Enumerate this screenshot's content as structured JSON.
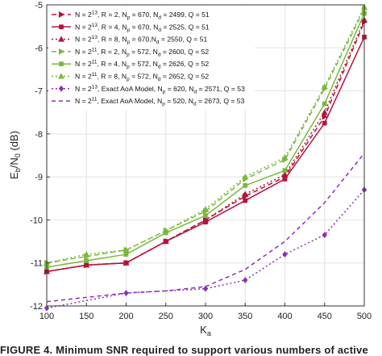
{
  "chart_data": {
    "type": "line",
    "xlabel_main": "K",
    "xlabel_sub": "a",
    "ylabel_parts": {
      "e": "E",
      "e_sub": "b",
      "slash": "/N",
      "n_sub": "0",
      "unit": " (dB)"
    },
    "xlim": [
      100,
      500
    ],
    "ylim": [
      -12,
      -5
    ],
    "x_ticks": [
      100,
      150,
      200,
      250,
      300,
      350,
      400,
      450,
      500
    ],
    "y_ticks": [
      -12,
      -11,
      -10,
      -9,
      -8,
      -7,
      -6,
      -5
    ],
    "grid": true,
    "legend_position": "top-left",
    "series": [
      {
        "legend": {
          "a": "N = 2",
          "sup": "13",
          "b": ", R = 2, N",
          "sub1": "p",
          "c": " = 670, N",
          "sub2": "d",
          "d": " = 2499, Q = 51"
        },
        "color": "#b5123a",
        "dash": "6,4",
        "marker": "triangle-right",
        "x": [
          100,
          150,
          200,
          250,
          300,
          350,
          400,
          450,
          500
        ],
        "y": [
          -11.2,
          -11.05,
          -11.0,
          -10.5,
          -10.0,
          -9.45,
          -9.0,
          -7.6,
          -5.4
        ]
      },
      {
        "legend": {
          "a": "N = 2",
          "sup": "13",
          "b": ", R = 4, N",
          "sub1": "p",
          "c": " = 670, N",
          "sub2": "d",
          "d": " = 2525, Q = 51"
        },
        "color": "#b5123a",
        "dash": "",
        "marker": "square",
        "x": [
          100,
          150,
          200,
          250,
          300,
          350,
          400,
          450,
          500
        ],
        "y": [
          -11.2,
          -11.05,
          -11.0,
          -10.5,
          -10.05,
          -9.55,
          -9.05,
          -7.75,
          -5.75
        ]
      },
      {
        "legend": {
          "a": "N = 2",
          "sup": "13",
          "b": ", R = 8, N",
          "sub1": "p",
          "c": " = 670,N",
          "sub2": "d",
          "d": " = 2550, Q = 51"
        },
        "color": "#b5123a",
        "dash": "2,3",
        "marker": "triangle-up",
        "x": [
          100,
          150,
          200,
          250,
          300,
          350,
          400,
          450,
          500
        ],
        "y": [
          -11.2,
          -11.05,
          -11.0,
          -10.5,
          -10.0,
          -9.4,
          -8.95,
          -7.5,
          -5.35
        ]
      },
      {
        "legend": {
          "a": "N = 2",
          "sup": "11",
          "b": ", R = 2, N",
          "sub1": "p",
          "c": " = 572, N",
          "sub2": "d",
          "d": " = 2600, Q = 52"
        },
        "color": "#7ab83c",
        "dash": "6,4",
        "marker": "triangle-right",
        "x": [
          100,
          150,
          200,
          250,
          300,
          350,
          400,
          450,
          500
        ],
        "y": [
          -11.0,
          -10.85,
          -10.7,
          -10.25,
          -9.8,
          -9.05,
          -8.6,
          -6.95,
          -5.1
        ]
      },
      {
        "legend": {
          "a": "N = 2",
          "sup": "11",
          "b": ", R = 4, N",
          "sub1": "p",
          "c": " = 572, N",
          "sub2": "d",
          "d": " = 2626, Q = 52"
        },
        "color": "#7ab83c",
        "dash": "",
        "marker": "square",
        "x": [
          100,
          150,
          200,
          250,
          300,
          350,
          400,
          450,
          500
        ],
        "y": [
          -11.1,
          -10.95,
          -10.8,
          -10.3,
          -9.9,
          -9.2,
          -8.85,
          -7.3,
          -5.2
        ]
      },
      {
        "legend": {
          "a": "N = 2",
          "sup": "11",
          "b": ", R = 8, N",
          "sub1": "p",
          "c": " = 572, N",
          "sub2": "d",
          "d": " = 2652, Q = 52"
        },
        "color": "#7ab83c",
        "dash": "2,3",
        "marker": "triangle-up",
        "x": [
          100,
          150,
          200,
          250,
          300,
          350,
          400,
          450,
          500
        ],
        "y": [
          -11.0,
          -10.8,
          -10.7,
          -10.25,
          -9.75,
          -9.0,
          -8.55,
          -6.9,
          -5.05
        ]
      },
      {
        "legend": {
          "a": "N = 2",
          "sup": "13",
          "b": ", Exact AoA Model, N",
          "sub1": "p",
          "c": " = 620, N",
          "sub2": "d",
          "d": " = 2571, Q = 53"
        },
        "color": "#8e2fb0",
        "dash": "2,3",
        "marker": "diamond",
        "x": [
          100,
          200,
          300,
          350,
          400,
          450,
          500
        ],
        "y": [
          -12.05,
          -11.7,
          -11.6,
          -11.4,
          -10.8,
          -10.35,
          -9.3
        ]
      },
      {
        "legend": {
          "a": "N = 2",
          "sup": "11",
          "b": ", Exact AoA Model, N",
          "sub1": "p",
          "c": " = 520, N",
          "sub2": "d",
          "d": " = 2673, Q = 53"
        },
        "color": "#8e2fb0",
        "dash": "5,4",
        "marker": "none",
        "x": [
          100,
          150,
          200,
          250,
          300,
          350,
          400,
          450,
          500
        ],
        "y": [
          -11.9,
          -11.8,
          -11.7,
          -11.65,
          -11.55,
          -11.15,
          -10.5,
          -9.6,
          -8.45
        ]
      }
    ]
  },
  "caption": "FIGURE 4.  Minimum SNR required to support various numbers of active"
}
